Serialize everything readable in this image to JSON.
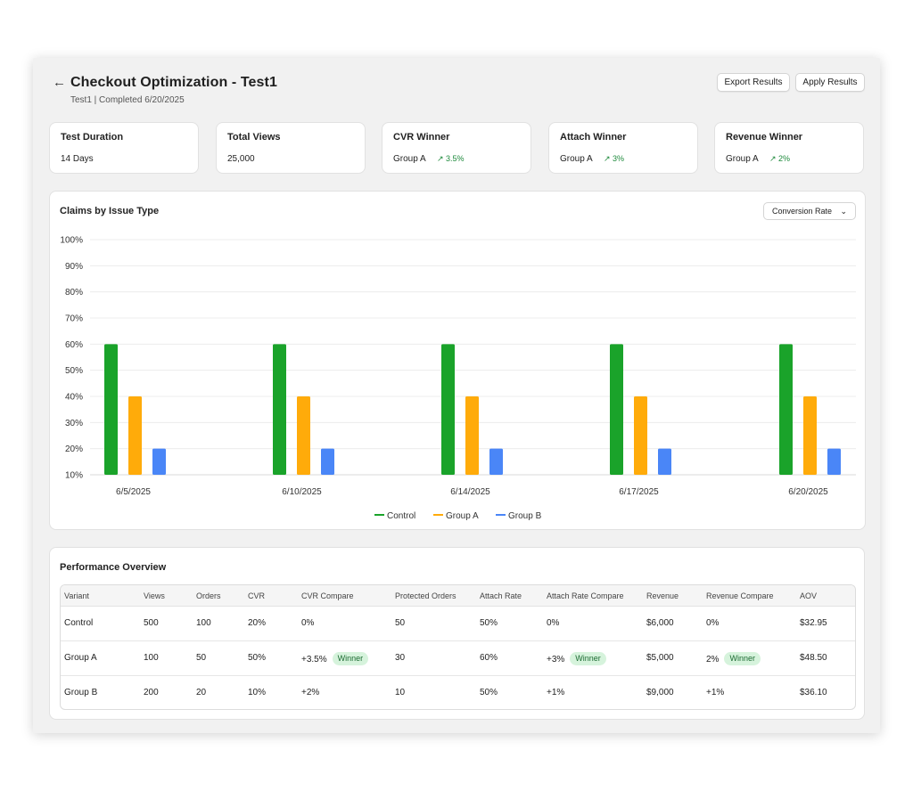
{
  "header": {
    "back_icon": "arrow-left-icon",
    "title": "Checkout Optimization - Test1",
    "subtitle": "Test1 | Completed 6/20/2025",
    "export_label": "Export Results",
    "apply_label": "Apply Results"
  },
  "stats": [
    {
      "title": "Test Duration",
      "value": "14 Days",
      "delta": ""
    },
    {
      "title": "Total Views",
      "value": "25,000",
      "delta": ""
    },
    {
      "title": "CVR Winner",
      "value": "Group A",
      "delta": "↗ 3.5%"
    },
    {
      "title": "Attach Winner",
      "value": "Group A",
      "delta": "↗ 3%"
    },
    {
      "title": "Revenue Winner",
      "value": "Group A",
      "delta": "↗ 2%"
    }
  ],
  "chart_panel": {
    "title": "Claims by Issue Type",
    "dropdown_value": "Conversion Rate",
    "dropdown_icon": "chevron-down-icon"
  },
  "chart_data": {
    "type": "bar",
    "title": "Claims by Issue Type",
    "categories": [
      "6/5/2025",
      "6/10/2025",
      "6/14/2025",
      "6/17/2025",
      "6/20/2025"
    ],
    "series": [
      {
        "name": "Control",
        "color": "#1aa32a",
        "values": [
          60,
          60,
          60,
          60,
          60
        ]
      },
      {
        "name": "Group A",
        "color": "#ffab0a",
        "values": [
          40,
          40,
          40,
          40,
          40
        ]
      },
      {
        "name": "Group B",
        "color": "#4a86f7",
        "values": [
          20,
          20,
          20,
          20,
          20
        ]
      }
    ],
    "y_ticks": [
      "10%",
      "20%",
      "30%",
      "40%",
      "50%",
      "60%",
      "70%",
      "80%",
      "90%",
      "100%"
    ],
    "ylim": [
      10,
      100
    ],
    "grid": true,
    "legend_position": "bottom-center",
    "xlabel": "",
    "ylabel": ""
  },
  "performance": {
    "title": "Performance Overview",
    "columns": [
      "Variant",
      "Views",
      "Orders",
      "CVR",
      "CVR Compare",
      "Protected Orders",
      "Attach Rate",
      "Attach Rate Compare",
      "Revenue",
      "Revenue Compare",
      "AOV"
    ],
    "rows": [
      {
        "cells": [
          "Control",
          "500",
          "100",
          "20%",
          "0%",
          "50",
          "50%",
          "0%",
          "$6,000",
          "0%",
          "$32.95"
        ],
        "badges": {}
      },
      {
        "cells": [
          "Group A",
          "100",
          "50",
          "50%",
          "+3.5%",
          "30",
          "60%",
          "+3%",
          "$5,000",
          "2%",
          "$48.50"
        ],
        "badges": {
          "4": "Winner",
          "7": "Winner",
          "9": "Winner"
        }
      },
      {
        "cells": [
          "Group B",
          "200",
          "20",
          "10%",
          "+2%",
          "10",
          "50%",
          "+1%",
          "$9,000",
          "+1%",
          "$36.10"
        ],
        "badges": {}
      }
    ]
  }
}
